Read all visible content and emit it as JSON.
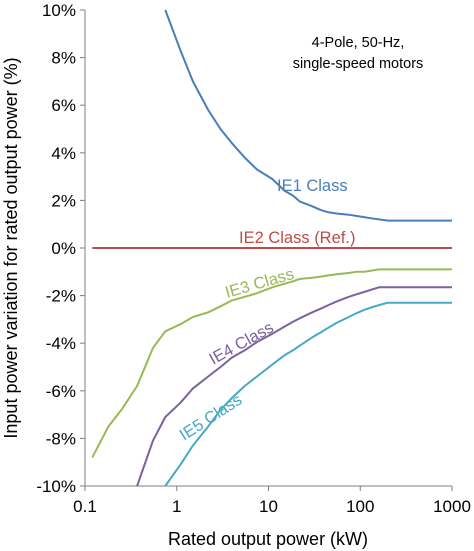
{
  "chart_data": {
    "type": "line",
    "xlabel": "Rated output power (kW)",
    "ylabel": "Input power variation for rated output power (%)",
    "x_scale": "log",
    "xlim": [
      0.1,
      1000
    ],
    "ylim": [
      -10,
      10
    ],
    "x_ticks": [
      0.1,
      1,
      10,
      100,
      1000
    ],
    "x_tick_labels": [
      "0.1",
      "1",
      "10",
      "100",
      "1000"
    ],
    "y_ticks": [
      10,
      8,
      6,
      4,
      2,
      0,
      -2,
      -4,
      -6,
      -8,
      -10
    ],
    "y_tick_labels": [
      "10%",
      "8%",
      "6%",
      "4%",
      "2%",
      "0%",
      "-2%",
      "-4%",
      "-6%",
      "-8%",
      "-10%"
    ],
    "annotation": [
      "4-Pole, 50-Hz,",
      "single-speed motors"
    ],
    "grid": false,
    "series": [
      {
        "name": "IE1 Class",
        "color": "#4a7ebb",
        "x": [
          0.75,
          1.1,
          1.5,
          2.2,
          3,
          4,
          5.5,
          7.5,
          11,
          15,
          18.5,
          22,
          30,
          37,
          45,
          55,
          75,
          90,
          110,
          132,
          160,
          200,
          1000
        ],
        "y": [
          10.0,
          8.3,
          7.0,
          5.8,
          5.0,
          4.4,
          3.8,
          3.3,
          2.9,
          2.4,
          2.2,
          1.95,
          1.75,
          1.6,
          1.5,
          1.45,
          1.4,
          1.35,
          1.3,
          1.25,
          1.2,
          1.15,
          1.15
        ]
      },
      {
        "name": "IE2 Class (Ref.)",
        "color": "#be4b48",
        "x": [
          0.12,
          1000
        ],
        "y": [
          0,
          0
        ]
      },
      {
        "name": "IE3 Class",
        "color": "#98b954",
        "x": [
          0.12,
          0.18,
          0.25,
          0.37,
          0.55,
          0.75,
          1.1,
          1.5,
          2.2,
          3,
          4,
          5.5,
          7.5,
          11,
          15,
          18.5,
          22,
          30,
          37,
          45,
          55,
          75,
          90,
          110,
          132,
          160,
          200,
          1000
        ],
        "y": [
          -8.8,
          -7.5,
          -6.8,
          -5.8,
          -4.2,
          -3.5,
          -3.2,
          -2.9,
          -2.7,
          -2.45,
          -2.2,
          -2.05,
          -1.9,
          -1.65,
          -1.5,
          -1.4,
          -1.3,
          -1.25,
          -1.2,
          -1.15,
          -1.1,
          -1.05,
          -1.0,
          -1.0,
          -0.95,
          -0.9,
          -0.9,
          -0.9
        ]
      },
      {
        "name": "IE4 Class",
        "color": "#7d60a0",
        "x": [
          0.37,
          0.55,
          0.75,
          1.1,
          1.5,
          2.2,
          3,
          4,
          5.5,
          7.5,
          11,
          15,
          18.5,
          22,
          30,
          37,
          45,
          55,
          75,
          90,
          110,
          132,
          160,
          200,
          1000
        ],
        "y": [
          -10.0,
          -8.1,
          -7.1,
          -6.5,
          -5.9,
          -5.4,
          -5.0,
          -4.6,
          -4.3,
          -3.95,
          -3.6,
          -3.3,
          -3.1,
          -2.95,
          -2.7,
          -2.55,
          -2.4,
          -2.25,
          -2.05,
          -1.95,
          -1.85,
          -1.75,
          -1.65,
          -1.65,
          -1.65
        ]
      },
      {
        "name": "IE5 Class",
        "color": "#46aac5",
        "x": [
          0.75,
          1.1,
          1.5,
          2.2,
          3,
          4,
          5.5,
          7.5,
          11,
          15,
          18.5,
          22,
          30,
          37,
          45,
          55,
          75,
          90,
          110,
          132,
          160,
          200,
          1000
        ],
        "y": [
          -10.0,
          -9.1,
          -8.3,
          -7.5,
          -6.8,
          -6.3,
          -5.8,
          -5.4,
          -4.9,
          -4.5,
          -4.3,
          -4.1,
          -3.75,
          -3.55,
          -3.35,
          -3.15,
          -2.9,
          -2.75,
          -2.6,
          -2.5,
          -2.4,
          -2.3,
          -2.3
        ]
      }
    ]
  }
}
